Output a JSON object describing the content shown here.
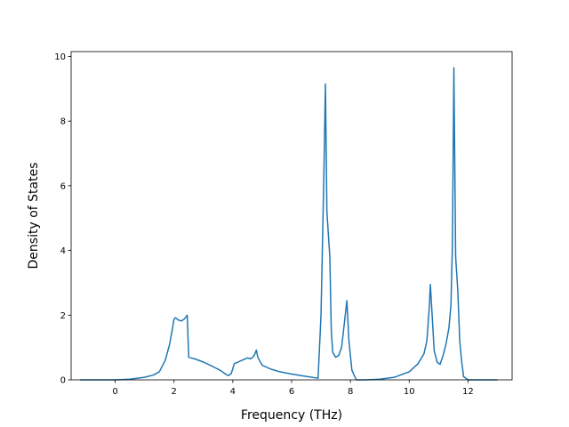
{
  "chart_data": {
    "type": "line",
    "xlabel": "Frequency (THz)",
    "ylabel": "Density of States",
    "xlim": [
      -1.5,
      13.5
    ],
    "ylim": [
      0,
      10.15
    ],
    "xticks": [
      0,
      2,
      4,
      6,
      8,
      10,
      12
    ],
    "xtick_labels": [
      "0",
      "2",
      "4",
      "6",
      "8",
      "10",
      "12"
    ],
    "yticks": [
      0,
      2,
      4,
      6,
      8,
      10
    ],
    "ytick_labels": [
      "0",
      "2",
      "4",
      "6",
      "8",
      "10"
    ],
    "grid": false,
    "series": [
      {
        "color": "#1f77b4",
        "x": [
          -1.2,
          -0.5,
          0,
          0.5,
          1.0,
          1.3,
          1.5,
          1.7,
          1.85,
          1.95,
          2.0,
          2.05,
          2.15,
          2.25,
          2.35,
          2.45,
          2.5,
          2.7,
          3.0,
          3.3,
          3.6,
          3.75,
          3.85,
          3.95,
          4.05,
          4.25,
          4.5,
          4.6,
          4.7,
          4.75,
          4.8,
          4.85,
          5.0,
          5.3,
          5.6,
          6.0,
          6.4,
          6.9,
          7.0,
          7.05,
          7.1,
          7.15,
          7.2,
          7.3,
          7.35,
          7.4,
          7.5,
          7.6,
          7.7,
          7.8,
          7.88,
          7.95,
          8.05,
          8.2,
          8.5,
          9.0,
          9.5,
          10.0,
          10.3,
          10.5,
          10.6,
          10.68,
          10.72,
          10.78,
          10.85,
          10.95,
          11.05,
          11.15,
          11.25,
          11.35,
          11.42,
          11.47,
          11.52,
          11.58,
          11.65,
          11.72,
          11.78,
          11.85,
          12.0,
          12.5,
          13.0
        ],
        "values": [
          0.0,
          0.0,
          0.0,
          0.02,
          0.08,
          0.15,
          0.25,
          0.6,
          1.1,
          1.6,
          1.88,
          1.92,
          1.85,
          1.82,
          1.88,
          2.0,
          0.7,
          0.65,
          0.55,
          0.42,
          0.28,
          0.18,
          0.13,
          0.2,
          0.5,
          0.58,
          0.68,
          0.65,
          0.72,
          0.8,
          0.92,
          0.7,
          0.45,
          0.33,
          0.25,
          0.18,
          0.12,
          0.05,
          2.0,
          4.2,
          6.5,
          9.15,
          5.2,
          3.8,
          1.5,
          0.85,
          0.7,
          0.75,
          1.0,
          1.8,
          2.45,
          1.2,
          0.3,
          0.0,
          0.0,
          0.02,
          0.08,
          0.25,
          0.5,
          0.8,
          1.2,
          2.2,
          2.95,
          2.0,
          0.9,
          0.55,
          0.48,
          0.75,
          1.1,
          1.6,
          2.3,
          4.2,
          9.65,
          3.8,
          2.8,
          1.2,
          0.6,
          0.1,
          0.0,
          0.0,
          0.0
        ]
      }
    ]
  }
}
